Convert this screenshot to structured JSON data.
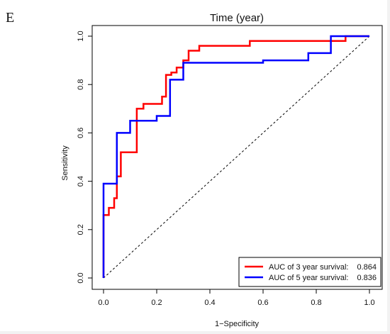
{
  "panel_label": "E",
  "chart_data": {
    "type": "line",
    "title": "Time (year)",
    "xlabel": "1−Specificity",
    "ylabel": "Sensitivity",
    "xlim": [
      0,
      1
    ],
    "ylim": [
      0,
      1
    ],
    "xticks": [
      "0.0",
      "0.2",
      "0.4",
      "0.6",
      "0.8",
      "1.0"
    ],
    "yticks": [
      "0.0",
      "0.2",
      "0.4",
      "0.6",
      "0.8",
      "1.0"
    ],
    "grid": false,
    "legend_position": "bottom-right",
    "reference_line": {
      "style": "dashed",
      "color": "#000000",
      "x": [
        0,
        1
      ],
      "y": [
        0,
        1
      ]
    },
    "series": [
      {
        "name": "AUC of 3 year survival:",
        "auc": "0.864",
        "color": "#ff0000",
        "x": [
          0,
          0,
          0.02,
          0.02,
          0.04,
          0.04,
          0.05,
          0.05,
          0.065,
          0.065,
          0.085,
          0.085,
          0.125,
          0.125,
          0.15,
          0.15,
          0.22,
          0.22,
          0.235,
          0.235,
          0.255,
          0.255,
          0.275,
          0.275,
          0.3,
          0.3,
          0.32,
          0.32,
          0.34,
          0.34,
          0.36,
          0.36,
          0.55,
          0.55,
          0.91,
          0.91,
          1
        ],
        "y": [
          0,
          0.26,
          0.26,
          0.29,
          0.29,
          0.33,
          0.33,
          0.42,
          0.42,
          0.52,
          0.52,
          0.52,
          0.52,
          0.7,
          0.7,
          0.72,
          0.72,
          0.75,
          0.75,
          0.84,
          0.84,
          0.85,
          0.85,
          0.87,
          0.87,
          0.9,
          0.9,
          0.94,
          0.94,
          0.94,
          0.94,
          0.96,
          0.96,
          0.98,
          0.98,
          1.0,
          1.0
        ]
      },
      {
        "name": "AUC of 5 year survival:",
        "auc": "0.836",
        "color": "#0000ff",
        "x": [
          0,
          0,
          0.05,
          0.05,
          0.1,
          0.1,
          0.2,
          0.2,
          0.25,
          0.25,
          0.3,
          0.3,
          0.3,
          0.6,
          0.6,
          0.77,
          0.77,
          0.855,
          0.855,
          1
        ],
        "y": [
          0,
          0.39,
          0.39,
          0.6,
          0.6,
          0.65,
          0.65,
          0.67,
          0.67,
          0.82,
          0.82,
          0.88,
          0.89,
          0.89,
          0.9,
          0.9,
          0.93,
          0.93,
          1.0,
          1.0
        ]
      }
    ]
  }
}
